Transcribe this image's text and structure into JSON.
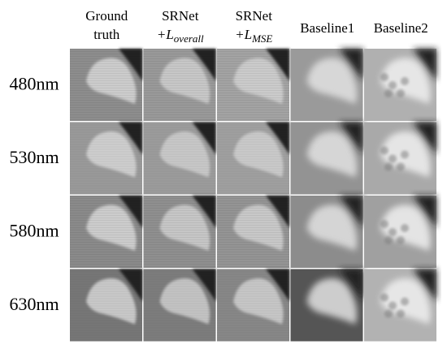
{
  "columns": [
    {
      "line1": "Ground",
      "line2": "truth"
    },
    {
      "line1": "SRNet",
      "line2": "+L",
      "sub": "overall"
    },
    {
      "line1": "SRNet",
      "line2": "+L",
      "sub": "MSE"
    },
    {
      "line1": "Baseline1"
    },
    {
      "line1": "Baseline2"
    }
  ],
  "rows": [
    "480nm",
    "530nm",
    "580nm",
    "630nm"
  ]
}
